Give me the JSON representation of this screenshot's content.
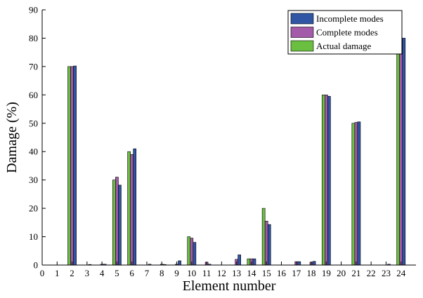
{
  "chart_data": {
    "type": "bar",
    "title": "",
    "xlabel": "Element number",
    "ylabel": "Damage (%)",
    "xlim": [
      0,
      25
    ],
    "ylim": [
      0,
      90
    ],
    "x_ticks": [
      0,
      1,
      2,
      3,
      4,
      5,
      6,
      7,
      8,
      9,
      10,
      11,
      12,
      13,
      14,
      15,
      16,
      17,
      18,
      19,
      20,
      21,
      22,
      23,
      24
    ],
    "y_ticks": [
      0,
      10,
      20,
      30,
      40,
      50,
      60,
      70,
      80,
      90
    ],
    "categories": [
      "1",
      "2",
      "3",
      "4",
      "5",
      "6",
      "7",
      "8",
      "9",
      "10",
      "11",
      "12",
      "13",
      "14",
      "15",
      "16",
      "17",
      "18",
      "19",
      "20",
      "21",
      "22",
      "23",
      "24"
    ],
    "series": [
      {
        "name": "Actual damage",
        "color": "#6abf40",
        "values": [
          0,
          70,
          0,
          0,
          30,
          40,
          0,
          0,
          0,
          10,
          0,
          0,
          0,
          2.2,
          20,
          0,
          0,
          0,
          60,
          0,
          50,
          0,
          0,
          80
        ]
      },
      {
        "name": "Complete modes",
        "color": "#a35aa8",
        "values": [
          0,
          70,
          0,
          0.3,
          31,
          39,
          0,
          0.3,
          0.3,
          9.5,
          1,
          0,
          2,
          2.2,
          15.5,
          0,
          1.2,
          1,
          60,
          0,
          50.3,
          0,
          0,
          80
        ]
      },
      {
        "name": "Incomplete modes",
        "color": "#2f55a4",
        "values": [
          0,
          70.2,
          0.2,
          0.3,
          28.2,
          41,
          0.3,
          0.2,
          1.5,
          8,
          0.3,
          0,
          3.6,
          2.2,
          14.3,
          0,
          1.2,
          1.3,
          59.5,
          0,
          50.5,
          0,
          0.3,
          80
        ]
      }
    ],
    "legend": {
      "position": "top-right",
      "entries": [
        "Incomplete modes",
        "Complete modes",
        "Actual damage"
      ]
    },
    "grid": false
  }
}
